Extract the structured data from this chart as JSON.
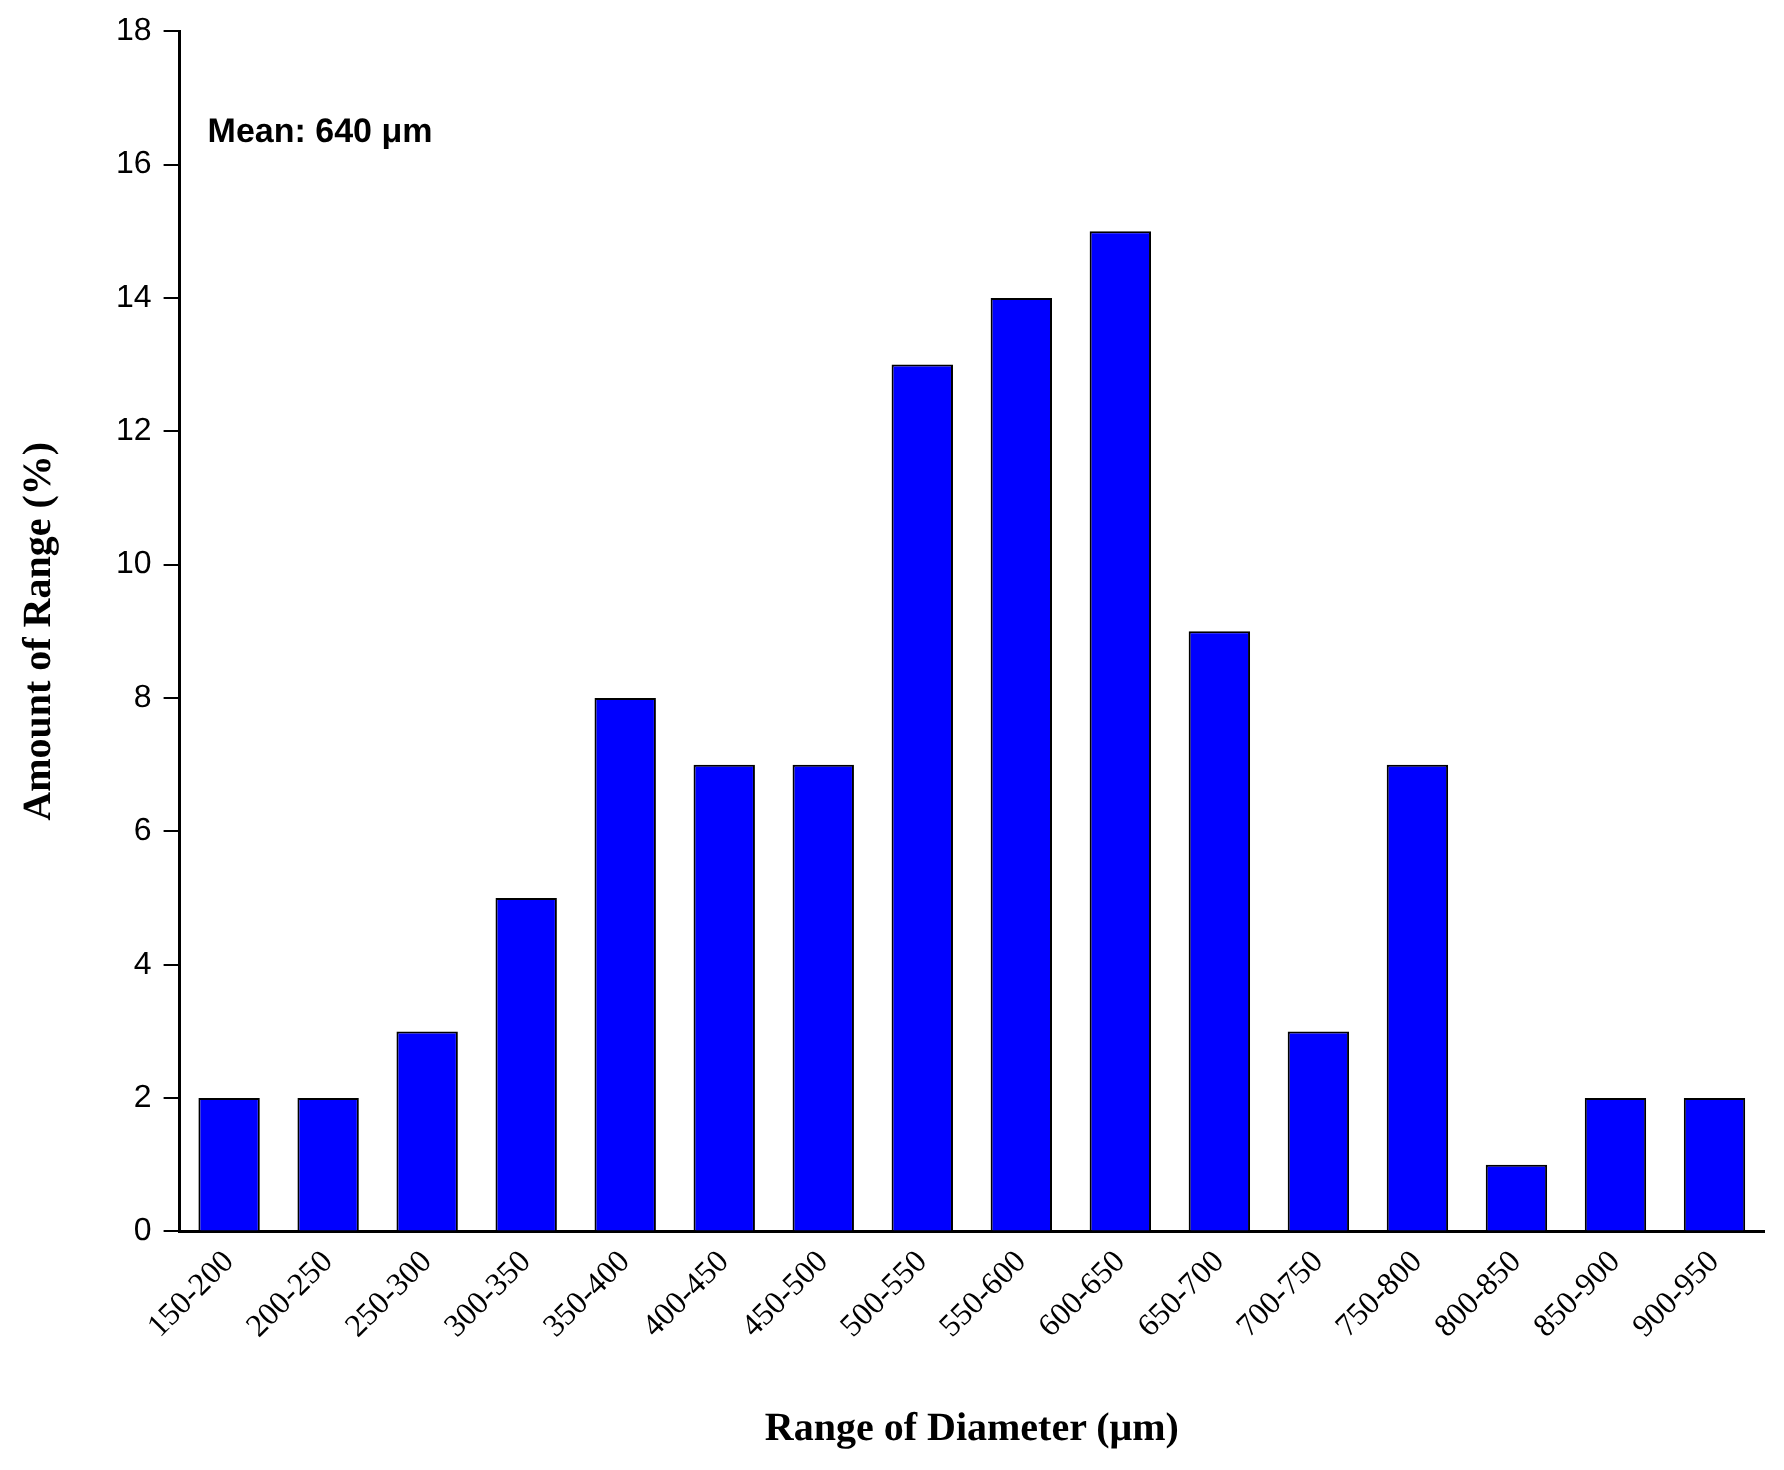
{
  "chart_data": {
    "type": "bar",
    "xlabel": "Range of Diameter (μm)",
    "ylabel": "Amount of Range (%)",
    "categories": [
      "150-200",
      "200-250",
      "250-300",
      "300-350",
      "350-400",
      "400-450",
      "450-500",
      "500-550",
      "550-600",
      "600-650",
      "650-700",
      "700-750",
      "750-800",
      "800-850",
      "850-900",
      "900-950"
    ],
    "values": [
      2,
      2,
      3,
      5,
      8,
      7,
      7,
      13,
      14,
      15,
      9,
      3,
      7,
      1,
      2,
      2
    ],
    "color": "#0000ff",
    "ylim": [
      0,
      18
    ],
    "yticks": [
      0,
      2,
      4,
      6,
      8,
      10,
      12,
      14,
      16,
      18
    ],
    "grid": false,
    "legend": false,
    "annotations": [
      "Mean: 640 μm"
    ]
  }
}
